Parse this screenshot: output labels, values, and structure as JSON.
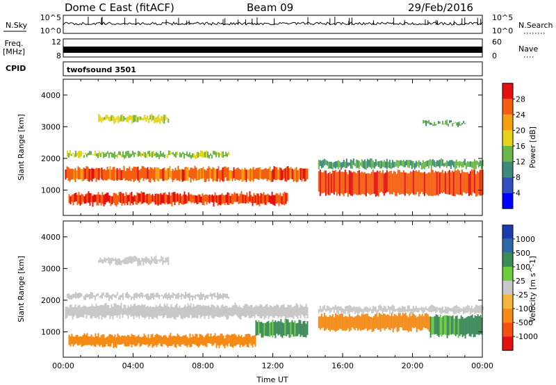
{
  "header": {
    "radar": "Dome C East (fitACF)",
    "beam": "Beam 09",
    "date": "29/Feb/2016"
  },
  "panels": {
    "nsky": {
      "label": "N.Sky",
      "ticks": [
        "10^5",
        "10^0"
      ]
    },
    "nsearch": {
      "label": "N.Search",
      "ticks": [
        "10^5",
        "10^0"
      ]
    },
    "freq": {
      "label_line1": "Freq.",
      "label_line2": "[MHz]",
      "ticks": [
        "12",
        "8"
      ]
    },
    "nave": {
      "label": "Nave",
      "ticks": [
        "60",
        "0"
      ]
    },
    "cpid": {
      "label": "CPID",
      "program": "twofsound 3501"
    }
  },
  "chart_data": [
    {
      "type": "heatmap",
      "name": "power",
      "xlabel": "",
      "ylabel": "Slant Range [km]",
      "yticks": [
        "1000",
        "2000",
        "3000",
        "4000"
      ],
      "ylim": [
        200,
        4500
      ],
      "xlim": [
        0,
        24
      ],
      "colorbar": {
        "label": "Power [dB]",
        "ticks": [
          "4",
          "8",
          "12",
          "16",
          "20",
          "24",
          "28"
        ],
        "colors": [
          "#0000ff",
          "#3050c0",
          "#3c8a78",
          "#6ab84a",
          "#e8d21a",
          "#f5a010",
          "#f56010",
          "#e31010"
        ]
      },
      "bands": [
        {
          "t0": 0.1,
          "t1": 14.0,
          "r0": 1250,
          "r1": 1750,
          "value": 26
        },
        {
          "t0": 0.3,
          "t1": 12.8,
          "r0": 500,
          "r1": 950,
          "value": 28
        },
        {
          "t0": 14.6,
          "t1": 24.0,
          "r0": 800,
          "r1": 1650,
          "value": 27
        },
        {
          "t0": 0.2,
          "t1": 9.5,
          "r0": 2000,
          "r1": 2250,
          "value": 15
        },
        {
          "t0": 14.6,
          "t1": 24.0,
          "r0": 1650,
          "r1": 2000,
          "value": 12
        },
        {
          "t0": 2.0,
          "t1": 6.0,
          "r0": 3100,
          "r1": 3400,
          "value": 17
        },
        {
          "t0": 20.5,
          "t1": 23.0,
          "r0": 3000,
          "r1": 3200,
          "value": 13
        }
      ]
    },
    {
      "type": "heatmap",
      "name": "velocity",
      "xlabel": "Time UT",
      "ylabel": "Slant Range [km]",
      "xticks": [
        "00:00",
        "04:00",
        "08:00",
        "12:00",
        "16:00",
        "20:00",
        "00:00"
      ],
      "yticks": [
        "1000",
        "2000",
        "3000",
        "4000"
      ],
      "ylim": [
        200,
        4500
      ],
      "xlim": [
        0,
        24
      ],
      "colorbar": {
        "label": "Velocity [m s^-1]",
        "ticks": [
          "1000",
          "500",
          "100",
          "25",
          "-25",
          "-100",
          "-500",
          "-1000"
        ],
        "colors": [
          "#1a3cb0",
          "#2f6aa8",
          "#3c8a5a",
          "#6ccc3c",
          "#c8c8c8",
          "#f5b43c",
          "#f58a14",
          "#f55014",
          "#e31010"
        ]
      },
      "bands": [
        {
          "t0": 0.1,
          "t1": 14.0,
          "r0": 1400,
          "r1": 1900,
          "value": 0
        },
        {
          "t0": 0.3,
          "t1": 11.0,
          "r0": 500,
          "r1": 950,
          "value": -250
        },
        {
          "t0": 11.0,
          "t1": 14.0,
          "r0": 800,
          "r1": 1400,
          "value": 150
        },
        {
          "t0": 14.6,
          "t1": 17.5,
          "r0": 1000,
          "r1": 1600,
          "value": -250
        },
        {
          "t0": 17.5,
          "t1": 21.0,
          "r0": 1000,
          "r1": 1600,
          "value": -300
        },
        {
          "t0": 21.0,
          "t1": 24.0,
          "r0": 800,
          "r1": 1550,
          "value": 150
        },
        {
          "t0": 14.6,
          "t1": 24.0,
          "r0": 1550,
          "r1": 1850,
          "value": 0
        },
        {
          "t0": 0.2,
          "t1": 9.5,
          "r0": 2000,
          "r1": 2250,
          "value": 0
        },
        {
          "t0": 2.0,
          "t1": 6.0,
          "r0": 3100,
          "r1": 3400,
          "value": 0
        }
      ]
    }
  ]
}
